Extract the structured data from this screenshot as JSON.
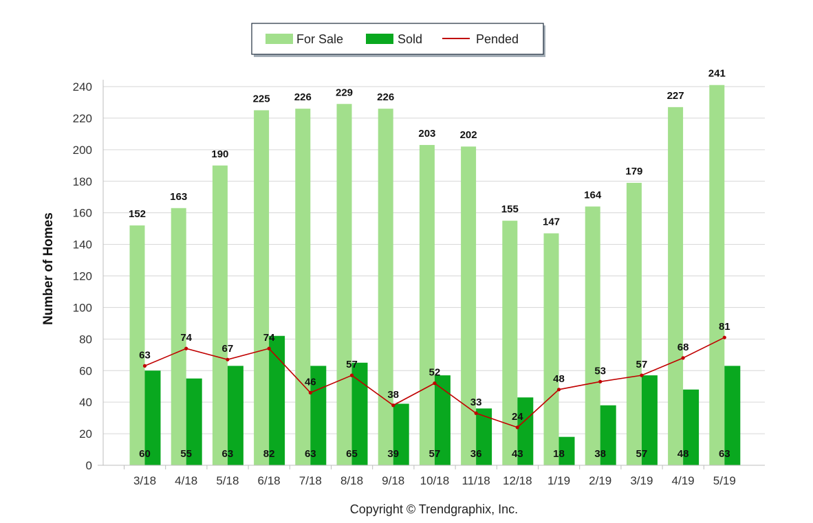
{
  "chart_data": {
    "type": "bar",
    "categories": [
      "3/18",
      "4/18",
      "5/18",
      "6/18",
      "7/18",
      "8/18",
      "9/18",
      "10/18",
      "11/18",
      "12/18",
      "1/19",
      "2/19",
      "3/19",
      "4/19",
      "5/19"
    ],
    "series": [
      {
        "name": "For Sale",
        "type": "bar",
        "color": "#a2df8c",
        "values": [
          152,
          163,
          190,
          225,
          226,
          229,
          226,
          203,
          202,
          155,
          147,
          164,
          179,
          227,
          241
        ]
      },
      {
        "name": "Sold",
        "type": "bar",
        "color": "#09a81f",
        "values": [
          60,
          55,
          63,
          82,
          63,
          65,
          39,
          57,
          36,
          43,
          18,
          38,
          57,
          48,
          63
        ]
      },
      {
        "name": "Pended",
        "type": "line",
        "color": "#c00000",
        "values": [
          63,
          74,
          67,
          74,
          46,
          57,
          38,
          52,
          33,
          24,
          48,
          53,
          57,
          68,
          81
        ]
      }
    ],
    "ylabel": "Number of Homes",
    "ylim": [
      0,
      240
    ],
    "yticks": [
      0,
      20,
      40,
      60,
      80,
      100,
      120,
      140,
      160,
      180,
      200,
      220,
      240
    ],
    "grid": true,
    "legend_position": "top-center"
  },
  "footer": {
    "copyright": "Copyright © Trendgraphix, Inc."
  }
}
